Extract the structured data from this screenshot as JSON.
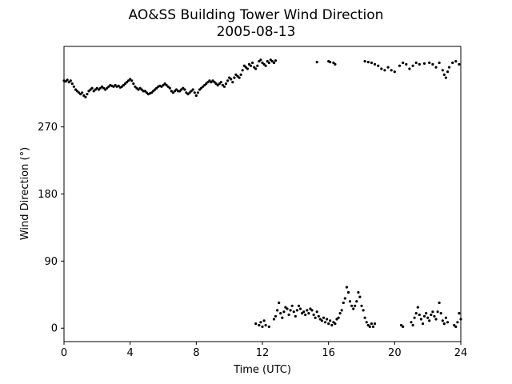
{
  "chart_data": {
    "type": "scatter",
    "title": "AO&SS Building Tower Wind Direction",
    "subtitle": "2005-08-13",
    "xlabel": "Time (UTC)",
    "ylabel": "Wind Direction (°)",
    "xlim": [
      0,
      24
    ],
    "ylim": [
      -18,
      378
    ],
    "xticks": [
      0,
      4,
      8,
      12,
      16,
      20,
      24
    ],
    "yticks": [
      0,
      90,
      180,
      270
    ],
    "grid": false,
    "marker_color": "#000000",
    "series": [
      {
        "points": [
          [
            0.0,
            332
          ],
          [
            0.1,
            331
          ],
          [
            0.2,
            333
          ],
          [
            0.3,
            330
          ],
          [
            0.4,
            332
          ],
          [
            0.5,
            328
          ],
          [
            0.6,
            324
          ],
          [
            0.7,
            320
          ],
          [
            0.8,
            318
          ],
          [
            0.9,
            316
          ],
          [
            1.0,
            314
          ],
          [
            1.1,
            316
          ],
          [
            1.2,
            312
          ],
          [
            1.3,
            310
          ],
          [
            1.4,
            314
          ],
          [
            1.5,
            318
          ],
          [
            1.6,
            320
          ],
          [
            1.7,
            322
          ],
          [
            1.8,
            318
          ],
          [
            1.9,
            320
          ],
          [
            2.0,
            322
          ],
          [
            2.1,
            320
          ],
          [
            2.2,
            322
          ],
          [
            2.3,
            324
          ],
          [
            2.4,
            322
          ],
          [
            2.5,
            320
          ],
          [
            2.6,
            322
          ],
          [
            2.7,
            324
          ],
          [
            2.8,
            326
          ],
          [
            2.9,
            325
          ],
          [
            3.0,
            324
          ],
          [
            3.1,
            326
          ],
          [
            3.2,
            324
          ],
          [
            3.3,
            325
          ],
          [
            3.4,
            323
          ],
          [
            3.5,
            324
          ],
          [
            3.6,
            326
          ],
          [
            3.7,
            328
          ],
          [
            3.8,
            330
          ],
          [
            3.9,
            332
          ],
          [
            4.0,
            334
          ],
          [
            4.1,
            332
          ],
          [
            4.2,
            328
          ],
          [
            4.3,
            324
          ],
          [
            4.4,
            322
          ],
          [
            4.5,
            320
          ],
          [
            4.6,
            322
          ],
          [
            4.7,
            320
          ],
          [
            4.8,
            318
          ],
          [
            4.9,
            318
          ],
          [
            5.0,
            316
          ],
          [
            5.1,
            314
          ],
          [
            5.2,
            315
          ],
          [
            5.3,
            316
          ],
          [
            5.4,
            318
          ],
          [
            5.5,
            320
          ],
          [
            5.6,
            322
          ],
          [
            5.7,
            324
          ],
          [
            5.8,
            325
          ],
          [
            5.9,
            324
          ],
          [
            6.0,
            326
          ],
          [
            6.1,
            328
          ],
          [
            6.2,
            326
          ],
          [
            6.3,
            324
          ],
          [
            6.4,
            322
          ],
          [
            6.5,
            318
          ],
          [
            6.6,
            316
          ],
          [
            6.7,
            318
          ],
          [
            6.8,
            320
          ],
          [
            6.9,
            318
          ],
          [
            7.0,
            318
          ],
          [
            7.1,
            320
          ],
          [
            7.2,
            322
          ],
          [
            7.3,
            320
          ],
          [
            7.4,
            316
          ],
          [
            7.5,
            314
          ],
          [
            7.6,
            316
          ],
          [
            7.7,
            318
          ],
          [
            7.8,
            320
          ],
          [
            7.9,
            316
          ],
          [
            8.0,
            312
          ],
          [
            8.1,
            316
          ],
          [
            8.2,
            320
          ],
          [
            8.3,
            322
          ],
          [
            8.4,
            324
          ],
          [
            8.5,
            326
          ],
          [
            8.6,
            328
          ],
          [
            8.7,
            330
          ],
          [
            8.8,
            332
          ],
          [
            8.9,
            330
          ],
          [
            9.0,
            332
          ],
          [
            9.1,
            330
          ],
          [
            9.2,
            328
          ],
          [
            9.3,
            326
          ],
          [
            9.4,
            328
          ],
          [
            9.5,
            330
          ],
          [
            9.6,
            326
          ],
          [
            9.7,
            324
          ],
          [
            9.8,
            328
          ],
          [
            9.9,
            332
          ],
          [
            10.0,
            336
          ],
          [
            10.1,
            334
          ],
          [
            10.2,
            330
          ],
          [
            10.3,
            336
          ],
          [
            10.4,
            340
          ],
          [
            10.5,
            338
          ],
          [
            10.6,
            336
          ],
          [
            10.7,
            340
          ],
          [
            10.8,
            346
          ],
          [
            10.9,
            352
          ],
          [
            11.0,
            350
          ],
          [
            11.1,
            348
          ],
          [
            11.2,
            354
          ],
          [
            11.3,
            352
          ],
          [
            11.4,
            356
          ],
          [
            11.5,
            350
          ],
          [
            11.6,
            348
          ],
          [
            11.7,
            352
          ],
          [
            11.8,
            358
          ],
          [
            11.9,
            360
          ],
          [
            12.0,
            356
          ],
          [
            12.1,
            354
          ],
          [
            12.2,
            352
          ],
          [
            12.3,
            358
          ],
          [
            12.4,
            356
          ],
          [
            12.5,
            360
          ],
          [
            12.6,
            358
          ],
          [
            12.7,
            356
          ],
          [
            12.8,
            359
          ],
          [
            15.3,
            357
          ],
          [
            16.0,
            358
          ],
          [
            16.1,
            357
          ],
          [
            16.3,
            356
          ],
          [
            16.4,
            354
          ],
          [
            18.2,
            358
          ],
          [
            18.4,
            357
          ],
          [
            18.6,
            356
          ],
          [
            18.8,
            354
          ],
          [
            19.0,
            352
          ],
          [
            19.2,
            348
          ],
          [
            19.4,
            346
          ],
          [
            19.6,
            350
          ],
          [
            19.8,
            346
          ],
          [
            20.0,
            344
          ],
          [
            20.3,
            352
          ],
          [
            20.5,
            356
          ],
          [
            20.7,
            354
          ],
          [
            20.9,
            348
          ],
          [
            21.1,
            352
          ],
          [
            21.3,
            356
          ],
          [
            21.5,
            354
          ],
          [
            21.8,
            355
          ],
          [
            22.1,
            356
          ],
          [
            22.3,
            354
          ],
          [
            22.5,
            350
          ],
          [
            22.7,
            356
          ],
          [
            22.9,
            346
          ],
          [
            23.0,
            340
          ],
          [
            23.1,
            336
          ],
          [
            23.2,
            344
          ],
          [
            23.3,
            350
          ],
          [
            23.5,
            356
          ],
          [
            23.7,
            358
          ],
          [
            23.9,
            354
          ],
          [
            11.6,
            6
          ],
          [
            11.8,
            4
          ],
          [
            11.9,
            8
          ],
          [
            12.0,
            2
          ],
          [
            12.1,
            10
          ],
          [
            12.2,
            4
          ],
          [
            12.4,
            2
          ],
          [
            12.7,
            12
          ],
          [
            12.8,
            16
          ],
          [
            12.9,
            24
          ],
          [
            13.0,
            34
          ],
          [
            13.1,
            20
          ],
          [
            13.2,
            14
          ],
          [
            13.3,
            22
          ],
          [
            13.4,
            28
          ],
          [
            13.5,
            26
          ],
          [
            13.6,
            18
          ],
          [
            13.7,
            24
          ],
          [
            13.8,
            30
          ],
          [
            13.9,
            22
          ],
          [
            14.0,
            16
          ],
          [
            14.1,
            24
          ],
          [
            14.2,
            30
          ],
          [
            14.3,
            26
          ],
          [
            14.4,
            20
          ],
          [
            14.5,
            22
          ],
          [
            14.6,
            18
          ],
          [
            14.7,
            24
          ],
          [
            14.8,
            20
          ],
          [
            14.9,
            26
          ],
          [
            15.0,
            24
          ],
          [
            15.1,
            18
          ],
          [
            15.2,
            14
          ],
          [
            15.3,
            22
          ],
          [
            15.4,
            16
          ],
          [
            15.5,
            12
          ],
          [
            15.6,
            10
          ],
          [
            15.7,
            14
          ],
          [
            15.8,
            8
          ],
          [
            15.9,
            12
          ],
          [
            16.0,
            6
          ],
          [
            16.1,
            10
          ],
          [
            16.2,
            4
          ],
          [
            16.3,
            8
          ],
          [
            16.4,
            6
          ],
          [
            16.5,
            12
          ],
          [
            16.6,
            14
          ],
          [
            16.7,
            20
          ],
          [
            16.8,
            24
          ],
          [
            16.9,
            34
          ],
          [
            17.0,
            40
          ],
          [
            17.1,
            55
          ],
          [
            17.2,
            48
          ],
          [
            17.3,
            36
          ],
          [
            17.4,
            30
          ],
          [
            17.5,
            26
          ],
          [
            17.6,
            30
          ],
          [
            17.7,
            36
          ],
          [
            17.8,
            48
          ],
          [
            17.9,
            42
          ],
          [
            18.0,
            30
          ],
          [
            18.1,
            24
          ],
          [
            18.2,
            14
          ],
          [
            18.3,
            8
          ],
          [
            18.4,
            4
          ],
          [
            18.5,
            2
          ],
          [
            18.6,
            6
          ],
          [
            18.7,
            2
          ],
          [
            18.8,
            6
          ],
          [
            20.4,
            4
          ],
          [
            20.5,
            2
          ],
          [
            21.0,
            8
          ],
          [
            21.1,
            4
          ],
          [
            21.2,
            14
          ],
          [
            21.3,
            20
          ],
          [
            21.4,
            28
          ],
          [
            21.5,
            18
          ],
          [
            21.6,
            12
          ],
          [
            21.7,
            6
          ],
          [
            21.8,
            16
          ],
          [
            21.9,
            20
          ],
          [
            22.0,
            14
          ],
          [
            22.1,
            10
          ],
          [
            22.2,
            18
          ],
          [
            22.3,
            22
          ],
          [
            22.4,
            16
          ],
          [
            22.5,
            12
          ],
          [
            22.6,
            22
          ],
          [
            22.7,
            34
          ],
          [
            22.8,
            20
          ],
          [
            22.9,
            10
          ],
          [
            23.0,
            6
          ],
          [
            23.1,
            14
          ],
          [
            23.2,
            8
          ],
          [
            23.6,
            4
          ],
          [
            23.7,
            2
          ],
          [
            23.8,
            8
          ],
          [
            23.9,
            20
          ],
          [
            24.0,
            12
          ]
        ]
      }
    ]
  }
}
